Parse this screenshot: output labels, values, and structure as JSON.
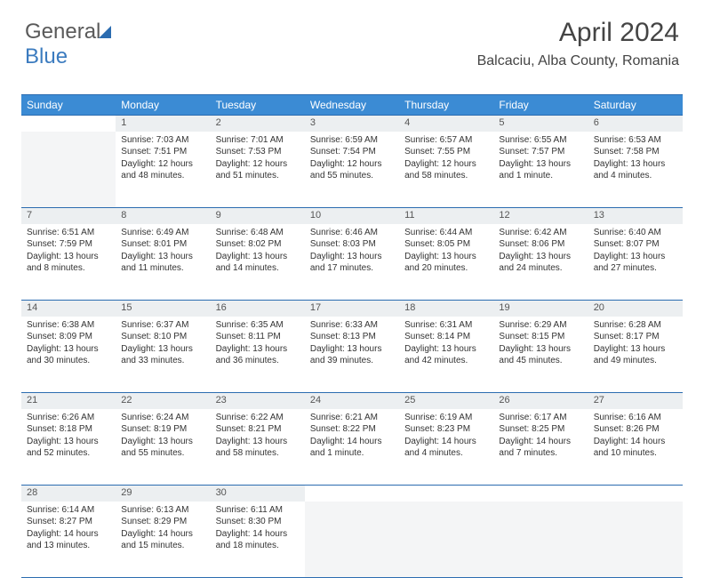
{
  "logo": {
    "word1": "General",
    "word2": "Blue"
  },
  "header": {
    "month_title": "April 2024",
    "location": "Balcaciu, Alba County, Romania"
  },
  "calendar": {
    "day_headers": [
      "Sunday",
      "Monday",
      "Tuesday",
      "Wednesday",
      "Thursday",
      "Friday",
      "Saturday"
    ],
    "colors": {
      "header_bg": "#3b8bd4",
      "header_text": "#ffffff",
      "border": "#2b6cb0",
      "daynum_bg": "#eceff1",
      "empty_bg": "#f4f5f6",
      "text": "#333333"
    },
    "font_sizes": {
      "header": 12,
      "daynum": 11,
      "body": 10
    },
    "weeks": [
      [
        null,
        {
          "n": "1",
          "sunrise": "Sunrise: 7:03 AM",
          "sunset": "Sunset: 7:51 PM",
          "day1": "Daylight: 12 hours",
          "day2": "and 48 minutes."
        },
        {
          "n": "2",
          "sunrise": "Sunrise: 7:01 AM",
          "sunset": "Sunset: 7:53 PM",
          "day1": "Daylight: 12 hours",
          "day2": "and 51 minutes."
        },
        {
          "n": "3",
          "sunrise": "Sunrise: 6:59 AM",
          "sunset": "Sunset: 7:54 PM",
          "day1": "Daylight: 12 hours",
          "day2": "and 55 minutes."
        },
        {
          "n": "4",
          "sunrise": "Sunrise: 6:57 AM",
          "sunset": "Sunset: 7:55 PM",
          "day1": "Daylight: 12 hours",
          "day2": "and 58 minutes."
        },
        {
          "n": "5",
          "sunrise": "Sunrise: 6:55 AM",
          "sunset": "Sunset: 7:57 PM",
          "day1": "Daylight: 13 hours",
          "day2": "and 1 minute."
        },
        {
          "n": "6",
          "sunrise": "Sunrise: 6:53 AM",
          "sunset": "Sunset: 7:58 PM",
          "day1": "Daylight: 13 hours",
          "day2": "and 4 minutes."
        }
      ],
      [
        {
          "n": "7",
          "sunrise": "Sunrise: 6:51 AM",
          "sunset": "Sunset: 7:59 PM",
          "day1": "Daylight: 13 hours",
          "day2": "and 8 minutes."
        },
        {
          "n": "8",
          "sunrise": "Sunrise: 6:49 AM",
          "sunset": "Sunset: 8:01 PM",
          "day1": "Daylight: 13 hours",
          "day2": "and 11 minutes."
        },
        {
          "n": "9",
          "sunrise": "Sunrise: 6:48 AM",
          "sunset": "Sunset: 8:02 PM",
          "day1": "Daylight: 13 hours",
          "day2": "and 14 minutes."
        },
        {
          "n": "10",
          "sunrise": "Sunrise: 6:46 AM",
          "sunset": "Sunset: 8:03 PM",
          "day1": "Daylight: 13 hours",
          "day2": "and 17 minutes."
        },
        {
          "n": "11",
          "sunrise": "Sunrise: 6:44 AM",
          "sunset": "Sunset: 8:05 PM",
          "day1": "Daylight: 13 hours",
          "day2": "and 20 minutes."
        },
        {
          "n": "12",
          "sunrise": "Sunrise: 6:42 AM",
          "sunset": "Sunset: 8:06 PM",
          "day1": "Daylight: 13 hours",
          "day2": "and 24 minutes."
        },
        {
          "n": "13",
          "sunrise": "Sunrise: 6:40 AM",
          "sunset": "Sunset: 8:07 PM",
          "day1": "Daylight: 13 hours",
          "day2": "and 27 minutes."
        }
      ],
      [
        {
          "n": "14",
          "sunrise": "Sunrise: 6:38 AM",
          "sunset": "Sunset: 8:09 PM",
          "day1": "Daylight: 13 hours",
          "day2": "and 30 minutes."
        },
        {
          "n": "15",
          "sunrise": "Sunrise: 6:37 AM",
          "sunset": "Sunset: 8:10 PM",
          "day1": "Daylight: 13 hours",
          "day2": "and 33 minutes."
        },
        {
          "n": "16",
          "sunrise": "Sunrise: 6:35 AM",
          "sunset": "Sunset: 8:11 PM",
          "day1": "Daylight: 13 hours",
          "day2": "and 36 minutes."
        },
        {
          "n": "17",
          "sunrise": "Sunrise: 6:33 AM",
          "sunset": "Sunset: 8:13 PM",
          "day1": "Daylight: 13 hours",
          "day2": "and 39 minutes."
        },
        {
          "n": "18",
          "sunrise": "Sunrise: 6:31 AM",
          "sunset": "Sunset: 8:14 PM",
          "day1": "Daylight: 13 hours",
          "day2": "and 42 minutes."
        },
        {
          "n": "19",
          "sunrise": "Sunrise: 6:29 AM",
          "sunset": "Sunset: 8:15 PM",
          "day1": "Daylight: 13 hours",
          "day2": "and 45 minutes."
        },
        {
          "n": "20",
          "sunrise": "Sunrise: 6:28 AM",
          "sunset": "Sunset: 8:17 PM",
          "day1": "Daylight: 13 hours",
          "day2": "and 49 minutes."
        }
      ],
      [
        {
          "n": "21",
          "sunrise": "Sunrise: 6:26 AM",
          "sunset": "Sunset: 8:18 PM",
          "day1": "Daylight: 13 hours",
          "day2": "and 52 minutes."
        },
        {
          "n": "22",
          "sunrise": "Sunrise: 6:24 AM",
          "sunset": "Sunset: 8:19 PM",
          "day1": "Daylight: 13 hours",
          "day2": "and 55 minutes."
        },
        {
          "n": "23",
          "sunrise": "Sunrise: 6:22 AM",
          "sunset": "Sunset: 8:21 PM",
          "day1": "Daylight: 13 hours",
          "day2": "and 58 minutes."
        },
        {
          "n": "24",
          "sunrise": "Sunrise: 6:21 AM",
          "sunset": "Sunset: 8:22 PM",
          "day1": "Daylight: 14 hours",
          "day2": "and 1 minute."
        },
        {
          "n": "25",
          "sunrise": "Sunrise: 6:19 AM",
          "sunset": "Sunset: 8:23 PM",
          "day1": "Daylight: 14 hours",
          "day2": "and 4 minutes."
        },
        {
          "n": "26",
          "sunrise": "Sunrise: 6:17 AM",
          "sunset": "Sunset: 8:25 PM",
          "day1": "Daylight: 14 hours",
          "day2": "and 7 minutes."
        },
        {
          "n": "27",
          "sunrise": "Sunrise: 6:16 AM",
          "sunset": "Sunset: 8:26 PM",
          "day1": "Daylight: 14 hours",
          "day2": "and 10 minutes."
        }
      ],
      [
        {
          "n": "28",
          "sunrise": "Sunrise: 6:14 AM",
          "sunset": "Sunset: 8:27 PM",
          "day1": "Daylight: 14 hours",
          "day2": "and 13 minutes."
        },
        {
          "n": "29",
          "sunrise": "Sunrise: 6:13 AM",
          "sunset": "Sunset: 8:29 PM",
          "day1": "Daylight: 14 hours",
          "day2": "and 15 minutes."
        },
        {
          "n": "30",
          "sunrise": "Sunrise: 6:11 AM",
          "sunset": "Sunset: 8:30 PM",
          "day1": "Daylight: 14 hours",
          "day2": "and 18 minutes."
        },
        null,
        null,
        null,
        null
      ]
    ]
  }
}
